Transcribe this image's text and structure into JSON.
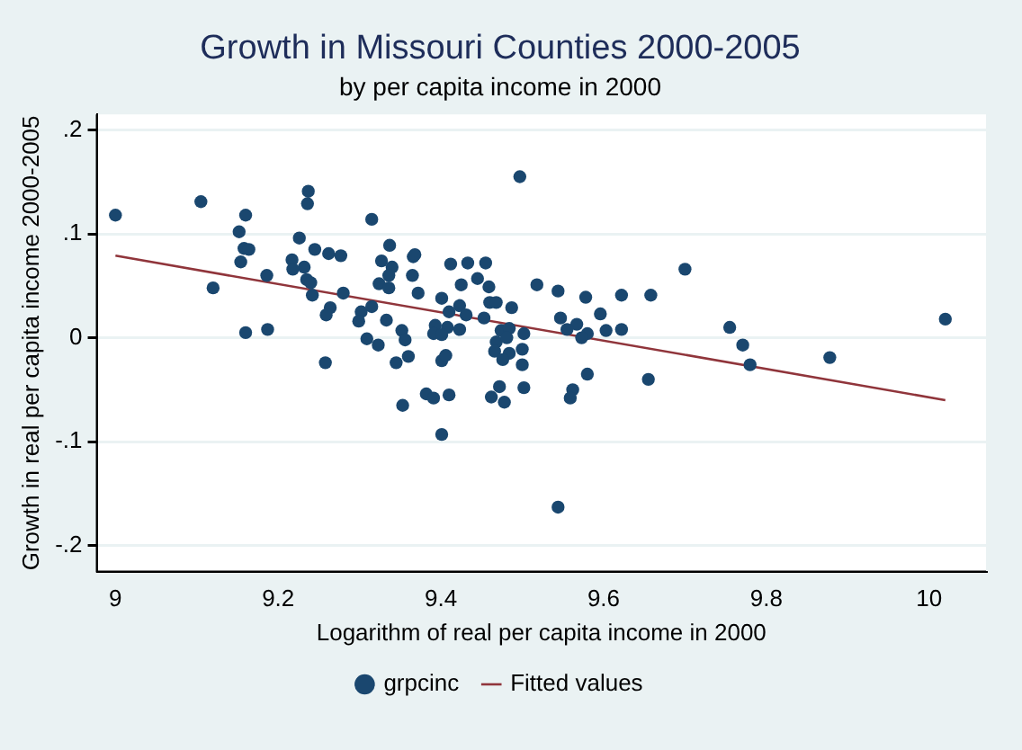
{
  "chart_data": {
    "type": "scatter",
    "title": "Growth in Missouri Counties 2000-2005",
    "subtitle": "by per capita income in 2000",
    "xlabel": "Logarithm of real per capita income in 2000",
    "ylabel": "Growth in real per capita income 2000-2005",
    "xlim": [
      8.977,
      10.07
    ],
    "ylim": [
      -0.225,
      0.215
    ],
    "xticks": [
      9,
      9.2,
      9.4,
      9.6,
      9.8,
      10
    ],
    "yticks": [
      {
        "value": -0.2,
        "label": "-.2"
      },
      {
        "value": -0.1,
        "label": "-.1"
      },
      0,
      {
        "value": 0.1,
        "label": ".1"
      },
      {
        "value": 0.2,
        "label": ".2"
      }
    ],
    "grid": "y",
    "legend": "bottom",
    "series": [
      {
        "name": "grpcinc",
        "type": "scatter",
        "marker": "circle",
        "color": "#1a476f",
        "x": [
          9.0,
          9.105,
          9.16,
          9.152,
          9.158,
          9.164,
          9.154,
          9.12,
          9.186,
          9.16,
          9.187,
          9.237,
          9.236,
          9.226,
          9.245,
          9.262,
          9.277,
          9.217,
          9.232,
          9.218,
          9.235,
          9.24,
          9.242,
          9.28,
          9.315,
          9.337,
          9.327,
          9.34,
          9.336,
          9.324,
          9.336,
          9.264,
          9.259,
          9.302,
          9.299,
          9.315,
          9.333,
          9.352,
          9.356,
          9.309,
          9.323,
          9.258,
          9.345,
          9.497,
          9.366,
          9.368,
          9.365,
          9.372,
          9.412,
          9.433,
          9.455,
          9.445,
          9.425,
          9.459,
          9.401,
          9.423,
          9.46,
          9.468,
          9.487,
          9.518,
          9.544,
          9.578,
          9.622,
          9.658,
          9.596,
          9.547,
          9.567,
          9.555,
          9.58,
          9.573,
          9.603,
          9.622,
          9.41,
          9.431,
          9.453,
          9.393,
          9.408,
          9.391,
          9.401,
          9.423,
          9.474,
          9.484,
          9.502,
          9.468,
          9.481,
          9.466,
          9.484,
          9.476,
          9.5,
          9.5,
          9.58,
          9.36,
          9.401,
          9.406,
          9.655,
          9.353,
          9.382,
          9.391,
          9.41,
          9.401,
          9.462,
          9.472,
          9.478,
          9.502,
          9.562,
          9.559,
          9.544,
          9.7,
          9.755,
          9.771,
          9.78,
          9.878,
          10.02
        ],
        "values": [
          0.118,
          0.131,
          0.118,
          0.102,
          0.086,
          0.085,
          0.073,
          0.048,
          0.06,
          0.005,
          0.008,
          0.141,
          0.129,
          0.096,
          0.085,
          0.081,
          0.079,
          0.075,
          0.068,
          0.066,
          0.056,
          0.053,
          0.041,
          0.043,
          0.114,
          0.089,
          0.074,
          0.068,
          0.06,
          0.052,
          0.048,
          0.029,
          0.022,
          0.025,
          0.016,
          0.03,
          0.017,
          0.007,
          -0.002,
          -0.001,
          -0.007,
          -0.024,
          -0.024,
          0.155,
          0.078,
          0.08,
          0.06,
          0.043,
          0.071,
          0.072,
          0.072,
          0.057,
          0.051,
          0.049,
          0.038,
          0.031,
          0.034,
          0.034,
          0.029,
          0.051,
          0.045,
          0.039,
          0.041,
          0.041,
          0.023,
          0.019,
          0.013,
          0.008,
          0.004,
          0.0,
          0.007,
          0.008,
          0.025,
          0.022,
          0.019,
          0.012,
          0.01,
          0.004,
          0.003,
          0.008,
          0.007,
          0.009,
          0.004,
          -0.004,
          0.0,
          -0.013,
          -0.015,
          -0.021,
          -0.011,
          -0.026,
          -0.035,
          -0.018,
          -0.022,
          -0.017,
          -0.04,
          -0.065,
          -0.054,
          -0.058,
          -0.055,
          -0.093,
          -0.057,
          -0.047,
          -0.062,
          -0.048,
          -0.05,
          -0.058,
          -0.163,
          0.066,
          0.01,
          -0.007,
          -0.026,
          -0.019,
          0.018
        ]
      },
      {
        "name": "Fitted values",
        "type": "line",
        "marker": "none",
        "color": "#90353b",
        "x": [
          9.0,
          10.02
        ],
        "values": [
          0.079,
          -0.06
        ]
      }
    ]
  }
}
